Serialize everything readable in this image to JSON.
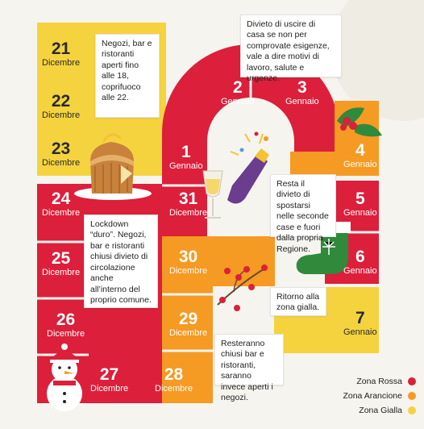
{
  "colors": {
    "rossa": "#dc1f3b",
    "arancione": "#f59a23",
    "gialla": "#f5d33f",
    "background": "#f6f4ef"
  },
  "days": [
    {
      "id": "21-dic",
      "num": "21",
      "month": "Dicembre",
      "zone": "gialla"
    },
    {
      "id": "22-dic",
      "num": "22",
      "month": "Dicembre",
      "zone": "gialla"
    },
    {
      "id": "23-dic",
      "num": "23",
      "month": "Dicembre",
      "zone": "gialla"
    },
    {
      "id": "24-dic",
      "num": "24",
      "month": "Dicembre",
      "zone": "rossa"
    },
    {
      "id": "25-dic",
      "num": "25",
      "month": "Dicembre",
      "zone": "rossa"
    },
    {
      "id": "26-dic",
      "num": "26",
      "month": "Dicembre",
      "zone": "rossa"
    },
    {
      "id": "27-dic",
      "num": "27",
      "month": "Dicembre",
      "zone": "rossa"
    },
    {
      "id": "28-dic",
      "num": "28",
      "month": "Dicembre",
      "zone": "arancione"
    },
    {
      "id": "29-dic",
      "num": "29",
      "month": "Dicembre",
      "zone": "arancione"
    },
    {
      "id": "30-dic",
      "num": "30",
      "month": "Dicembre",
      "zone": "arancione"
    },
    {
      "id": "31-dic",
      "num": "31",
      "month": "Dicembre",
      "zone": "rossa"
    },
    {
      "id": "1-gen",
      "num": "1",
      "month": "Gennaio",
      "zone": "rossa"
    },
    {
      "id": "2-gen",
      "num": "2",
      "month": "Gennaio",
      "zone": "rossa"
    },
    {
      "id": "3-gen",
      "num": "3",
      "month": "Gennaio",
      "zone": "rossa"
    },
    {
      "id": "4-gen",
      "num": "4",
      "month": "Gennaio",
      "zone": "arancione"
    },
    {
      "id": "5-gen",
      "num": "5",
      "month": "Gennaio",
      "zone": "rossa"
    },
    {
      "id": "6-gen",
      "num": "6",
      "month": "Gennaio",
      "zone": "rossa"
    },
    {
      "id": "7-gen",
      "num": "7",
      "month": "Gennaio",
      "zone": "gialla"
    }
  ],
  "notes": {
    "negozi": "Negozi, bar e ristoranti aperti fino alle 18, coprifuoco alle 22.",
    "divieto_casa": "Divieto di uscire di casa se non per comprovate esigenze, vale a dire motivi di lavoro, salute e urgenze.",
    "lockdown": "Lockdown “duro”. Negozi, bar e ristoranti chiusi divieto di circolazione anche all’interno del proprio comune.",
    "seconde_case": "Resta il divieto di spostarsi nelle seconde case e fuori dalla propria Regione.",
    "ritorno": "Ritorno alla zona gialla.",
    "resteranno": "Resteranno chiusi bar e ristoranti, saranno invece aperti i negozi."
  },
  "legend": [
    {
      "label": "Zona Rossa",
      "zone": "rossa"
    },
    {
      "label": "Zona Arancione",
      "zone": "arancione"
    },
    {
      "label": "Zona Gialla",
      "zone": "gialla"
    }
  ],
  "icons": [
    "panettone-icon",
    "champagne-icon",
    "holly-icon",
    "stocking-icon",
    "berries-icon",
    "snowman-icon"
  ]
}
